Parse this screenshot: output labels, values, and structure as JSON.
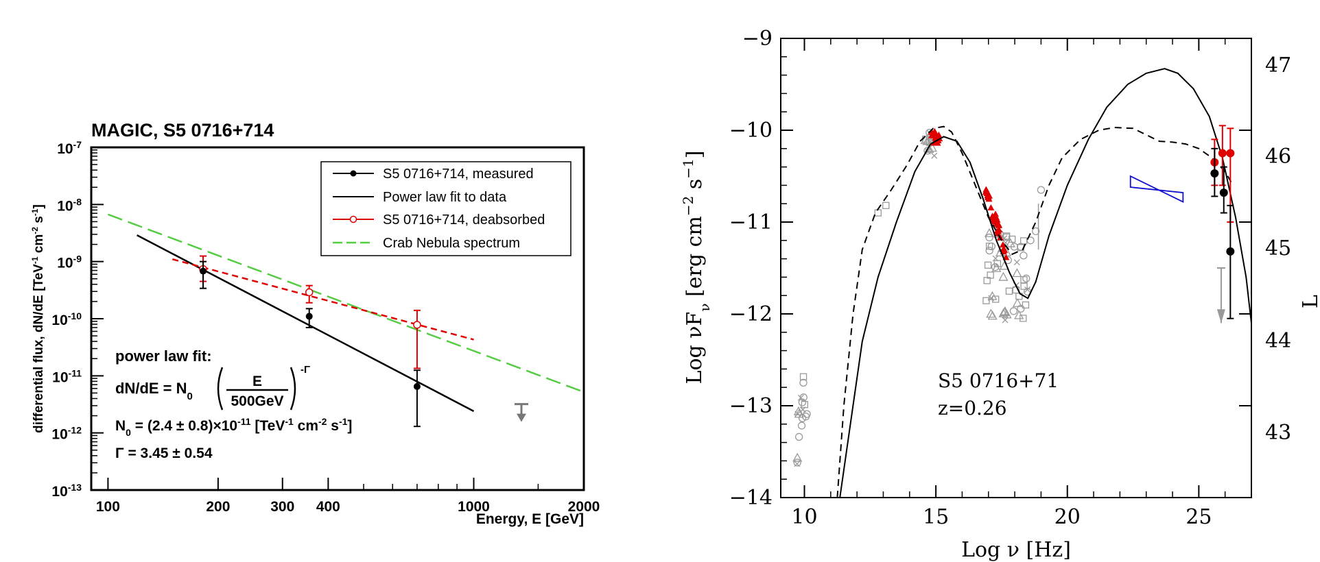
{
  "chart_data": [
    {
      "type": "scatter",
      "scale": "log-log",
      "title": "MAGIC, S5 0716+714",
      "xlabel": "Energy, E [GeV]",
      "ylabel_main": "differential flux, dN/dE [TeV",
      "ylabel_a": "cm",
      "ylabel_b": "s",
      "ylabel_end": "]",
      "xlim": [
        90,
        2000
      ],
      "ylim": [
        1e-13,
        1e-07
      ],
      "x_ticks": [
        {
          "value": 100,
          "label": "100"
        },
        {
          "value": 200,
          "label": "200"
        },
        {
          "value": 300,
          "label": "300"
        },
        {
          "value": 400,
          "label": "400"
        },
        {
          "value": 1000,
          "label": "1000"
        },
        {
          "value": 2000,
          "label": "2000"
        }
      ],
      "y_ticks": [
        {
          "exp": -7,
          "label": "10",
          "sup": "-7"
        },
        {
          "exp": -8,
          "label": "10",
          "sup": "-8"
        },
        {
          "exp": -9,
          "label": "10",
          "sup": "-9"
        },
        {
          "exp": -10,
          "label": "10",
          "sup": "-10"
        },
        {
          "exp": -11,
          "label": "10",
          "sup": "-11"
        },
        {
          "exp": -12,
          "label": "10",
          "sup": "-12"
        },
        {
          "exp": -13,
          "label": "10",
          "sup": "-13"
        }
      ],
      "measured": [
        {
          "x": 182,
          "y": 6.8e-10,
          "lo": 3.4e-10,
          "hi": 1e-09
        },
        {
          "x": 355,
          "y": 1.1e-10,
          "lo": 7e-11,
          "hi": 1.5e-10
        },
        {
          "x": 700,
          "y": 6.5e-12,
          "lo": 1.3e-12,
          "hi": 1.25e-11
        }
      ],
      "deabsorbed": [
        {
          "x": 182,
          "y": 7.4e-10,
          "lo": 4.5e-10,
          "hi": 1.25e-09
        },
        {
          "x": 355,
          "y": 2.9e-10,
          "lo": 1.9e-10,
          "hi": 3.8e-10
        },
        {
          "x": 700,
          "y": 7.8e-11,
          "lo": 1.35e-11,
          "hi": 1.4e-10
        }
      ],
      "fit_line": [
        {
          "x": 120,
          "y": 2.9e-09
        },
        {
          "x": 1000,
          "y": 2.4e-12
        }
      ],
      "deabsorbed_fit": [
        {
          "x": 150,
          "y": 1.1e-09
        },
        {
          "x": 1000,
          "y": 4.3e-11
        }
      ],
      "crab_line": [
        {
          "x": 100,
          "y": 6.7e-09
        },
        {
          "x": 2000,
          "y": 5.2e-12
        }
      ],
      "upper_limit": {
        "x": 1350,
        "y": 3.2e-12
      },
      "legend": [
        "S5 0716+714, measured",
        "Power law fit to data",
        "S5 0716+714, deabsorbed",
        "Crab Nebula spectrum"
      ],
      "annotations": {
        "fit_title": "power law fit:",
        "formula_lhs": "dN/dE = N",
        "formula_sub": "0",
        "formula_num": "E",
        "formula_den": "500GeV",
        "formula_exp": "-Γ",
        "n0_label": "N",
        "n0_sub": "0",
        "n0_value": " = (2.4 ± 0.8)×10",
        "n0_exp": "-11",
        "n0_unit_a": " [TeV",
        "n0_unit_sup1": "-1",
        "n0_unit_b": " cm",
        "n0_unit_sup2": "-2",
        "n0_unit_c": " s",
        "n0_unit_sup3": "-1",
        "n0_unit_end": "]",
        "gamma": "Γ = 3.45 ± 0.54"
      }
    },
    {
      "type": "line",
      "title": "",
      "xlabel": "Log ν [Hz]",
      "ylabel": "Log νF",
      "ylabel_sub": "ν",
      "ylabel_unit": " [erg cm",
      "ylabel_sup1": "−2",
      "ylabel_unit2": " s",
      "ylabel_sup2": "−1",
      "ylabel_end": "]",
      "xlim": [
        9.1,
        27.0
      ],
      "ylim": [
        -14,
        -9
      ],
      "x_ticks": [
        10,
        15,
        20,
        25
      ],
      "x_tick_labels": [
        "10",
        "15",
        "20",
        "25"
      ],
      "y_ticks": [
        -9,
        -10,
        -11,
        -12,
        -13,
        -14
      ],
      "y_tick_labels": [
        "−9",
        "−10",
        "−11",
        "−12",
        "−13",
        "−14"
      ],
      "right_ticks": [
        47,
        46,
        45,
        44,
        43
      ],
      "right_tick_labels": [
        "47",
        "46",
        "45",
        "44",
        "43"
      ],
      "right_label": "L",
      "annotation": [
        "S5 0716+71",
        "z=0.26"
      ],
      "series": [
        {
          "style": "solid",
          "points": [
            [
              11.35,
              -14.0
            ],
            [
              11.7,
              -13.3
            ],
            [
              12.2,
              -12.3
            ],
            [
              12.8,
              -11.6
            ],
            [
              13.5,
              -11.0
            ],
            [
              14.2,
              -10.45
            ],
            [
              14.8,
              -10.15
            ],
            [
              15.3,
              -10.07
            ],
            [
              15.8,
              -10.12
            ],
            [
              16.3,
              -10.35
            ],
            [
              16.8,
              -10.75
            ],
            [
              17.3,
              -11.2
            ],
            [
              17.8,
              -11.55
            ],
            [
              18.2,
              -11.78
            ],
            [
              18.5,
              -11.83
            ],
            [
              18.8,
              -11.65
            ],
            [
              19.3,
              -11.15
            ],
            [
              20.0,
              -10.6
            ],
            [
              20.8,
              -10.1
            ],
            [
              21.5,
              -9.75
            ],
            [
              22.3,
              -9.5
            ],
            [
              23.0,
              -9.38
            ],
            [
              23.7,
              -9.33
            ],
            [
              24.2,
              -9.38
            ],
            [
              24.8,
              -9.55
            ],
            [
              25.4,
              -9.85
            ],
            [
              25.9,
              -10.3
            ],
            [
              26.4,
              -10.95
            ],
            [
              26.8,
              -11.6
            ],
            [
              27.0,
              -12.1
            ]
          ]
        },
        {
          "style": "dashed",
          "points": [
            [
              11.25,
              -14.0
            ],
            [
              11.5,
              -13.0
            ],
            [
              11.85,
              -12.0
            ],
            [
              12.2,
              -11.3
            ],
            [
              12.7,
              -10.9
            ],
            [
              13.3,
              -10.65
            ],
            [
              13.9,
              -10.38
            ],
            [
              14.4,
              -10.12
            ],
            [
              14.9,
              -9.98
            ],
            [
              15.3,
              -9.96
            ],
            [
              15.6,
              -10.02
            ],
            [
              16.0,
              -10.25
            ],
            [
              16.5,
              -10.6
            ],
            [
              17.0,
              -10.95
            ],
            [
              17.5,
              -11.2
            ],
            [
              17.9,
              -11.35
            ],
            [
              18.3,
              -11.3
            ],
            [
              18.8,
              -11.0
            ],
            [
              19.3,
              -10.6
            ],
            [
              19.8,
              -10.3
            ],
            [
              20.5,
              -10.1
            ],
            [
              21.2,
              -10.0
            ],
            [
              21.8,
              -9.97
            ],
            [
              22.5,
              -9.98
            ],
            [
              23.0,
              -10.05
            ],
            [
              23.5,
              -10.12
            ],
            [
              24.0,
              -10.13
            ],
            [
              24.5,
              -10.15
            ],
            [
              25.0,
              -10.2
            ],
            [
              25.5,
              -10.3
            ],
            [
              26.0,
              -10.45
            ],
            [
              26.3,
              -10.6
            ]
          ]
        }
      ],
      "red_points": [
        {
          "x": 25.6,
          "y": -10.35,
          "lo": -10.6,
          "hi": -10.1
        },
        {
          "x": 25.9,
          "y": -10.25,
          "lo": -10.6,
          "hi": -9.95
        },
        {
          "x": 26.2,
          "y": -10.25,
          "lo": -11.0,
          "hi": -9.98
        }
      ],
      "black_points": [
        {
          "x": 25.6,
          "y": -10.47,
          "lo": -10.72,
          "hi": -10.2
        },
        {
          "x": 25.95,
          "y": -10.68,
          "lo": -10.9,
          "hi": -10.4
        },
        {
          "x": 26.2,
          "y": -11.32,
          "lo": -12.05,
          "hi": -10.82
        }
      ],
      "xray_bowtie": {
        "x1": 22.4,
        "x2": 24.4
      }
    }
  ]
}
